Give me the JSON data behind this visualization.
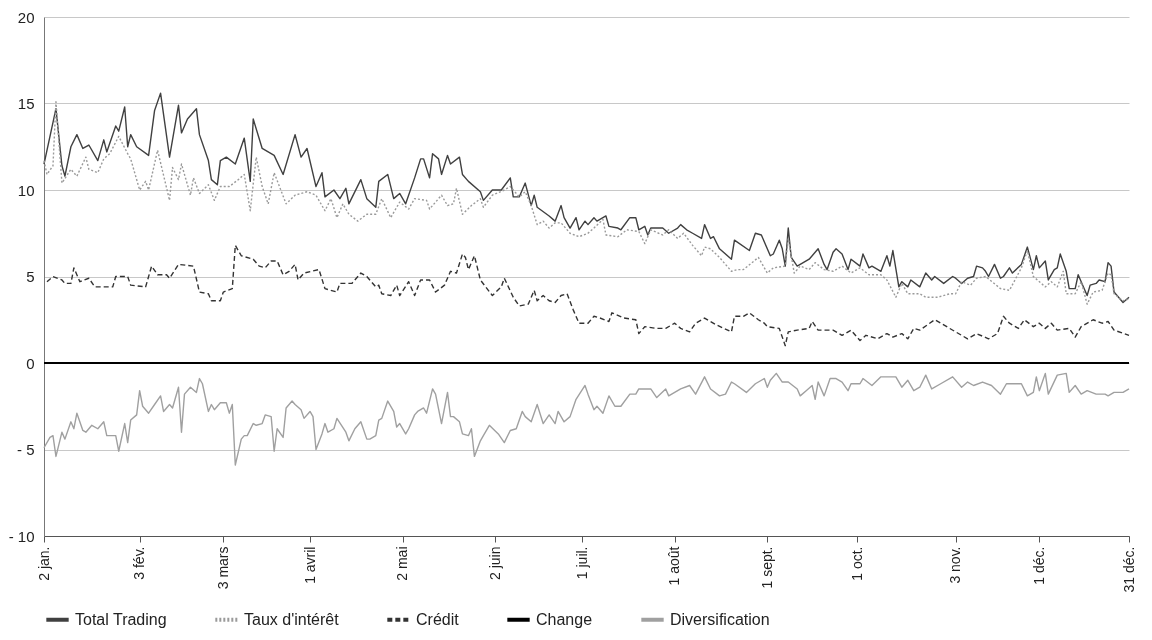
{
  "chart_data": {
    "type": "line",
    "legend": "bottom",
    "grid": "y",
    "xlim": [
      "--01-02",
      "--12-31"
    ],
    "xticks": [
      {
        "value": "--01-02",
        "label": "2 jan."
      },
      {
        "value": "--02-03",
        "label": "3 fév."
      },
      {
        "value": "--03-03",
        "label": "3 mars"
      },
      {
        "value": "--04-01",
        "label": "1 avril"
      },
      {
        "value": "--05-02",
        "label": "2 mai"
      },
      {
        "value": "--06-02",
        "label": "2 juin"
      },
      {
        "value": "--07-01",
        "label": "1 juil."
      },
      {
        "value": "--08-01",
        "label": "1 août"
      },
      {
        "value": "--09-01",
        "label": "1 sept."
      },
      {
        "value": "--10-01",
        "label": "1 oct."
      },
      {
        "value": "--11-03",
        "label": "3 nov."
      },
      {
        "value": "--12-01",
        "label": "1 déc."
      },
      {
        "value": "--12-31",
        "label": "31 déc."
      }
    ],
    "ylim": [
      -10,
      20
    ],
    "yticks": [
      {
        "value": -10,
        "label": "- 10"
      },
      {
        "value": -5,
        "label": "- 5"
      },
      0,
      5,
      10,
      15,
      20
    ],
    "series": [
      {
        "name": "Total Trading",
        "color": "#404040",
        "line_style": "solid",
        "x": [
          "--01-02",
          "--01-06",
          "--01-08",
          "--01-09",
          "--01-11",
          "--01-13",
          "--01-15",
          "--01-17",
          "--01-20",
          "--01-22",
          "--01-23",
          "--01-26",
          "--01-27",
          "--01-29",
          "--01-30",
          "--01-31",
          "--02-02",
          "--02-06",
          "--02-08",
          "--02-10",
          "--02-13",
          "--02-16",
          "--02-17",
          "--02-19",
          "--02-22",
          "--02-23",
          "--02-26",
          "--02-27",
          "--03-01",
          "--03-02",
          "--03-04",
          "--03-07",
          "--03-10",
          "--03-12",
          "--03-13",
          "--03-16",
          "--03-20",
          "--03-23",
          "--03-27",
          "--03-29",
          "--03-31",
          "--04-03",
          "--04-05",
          "--04-06",
          "--04-09",
          "--04-11",
          "--04-13",
          "--04-14",
          "--04-18",
          "--04-20",
          "--04-23",
          "--04-24",
          "--04-27",
          "--04-29",
          "--05-01",
          "--05-03",
          "--05-06",
          "--05-08",
          "--05-09",
          "--05-11",
          "--05-12",
          "--05-14",
          "--05-15",
          "--05-17",
          "--05-18",
          "--05-21",
          "--05-22",
          "--05-24",
          "--05-28",
          "--05-29",
          "--06-01",
          "--06-04",
          "--06-07",
          "--06-08",
          "--06-10",
          "--06-12",
          "--06-14",
          "--06-15",
          "--06-16",
          "--06-20",
          "--06-22",
          "--06-24",
          "--06-25",
          "--06-27",
          "--06-29",
          "--06-30",
          "--07-02",
          "--07-03",
          "--07-05",
          "--07-06",
          "--07-09",
          "--07-10",
          "--07-13",
          "--07-14",
          "--07-17",
          "--07-19",
          "--07-20",
          "--07-22",
          "--07-23",
          "--07-24",
          "--07-28",
          "--07-30",
          "--08-02",
          "--08-03",
          "--08-05",
          "--08-07",
          "--08-10",
          "--08-11",
          "--08-13",
          "--08-14",
          "--08-16",
          "--08-20",
          "--08-21",
          "--08-26",
          "--08-28",
          "--08-30",
          "--09-02",
          "--09-03",
          "--09-05",
          "--09-06",
          "--09-07",
          "--09-08",
          "--09-09",
          "--09-11",
          "--09-14",
          "--09-15",
          "--09-18",
          "--09-20",
          "--09-21",
          "--09-23",
          "--09-24",
          "--09-26",
          "--09-28",
          "--09-29",
          "--10-02",
          "--10-03",
          "--10-05",
          "--10-06",
          "--10-09",
          "--10-11",
          "--10-12",
          "--10-13",
          "--10-15",
          "--10-16",
          "--10-18",
          "--10-19",
          "--10-22",
          "--10-24",
          "--10-26",
          "--10-27",
          "--10-30",
          "--11-02",
          "--11-03",
          "--11-05",
          "--11-07",
          "--11-09",
          "--11-10",
          "--11-12",
          "--11-13",
          "--11-14",
          "--11-16",
          "--11-18",
          "--11-19",
          "--11-21",
          "--11-22",
          "--11-25",
          "--11-27",
          "--11-29",
          "--11-30",
          "--12-01",
          "--12-03",
          "--12-04",
          "--12-06",
          "--12-07",
          "--12-08",
          "--12-10",
          "--12-11",
          "--12-13",
          "--12-14",
          "--12-15",
          "--12-17",
          "--12-18",
          "--12-20",
          "--12-21",
          "--12-23",
          "--12-24",
          "--12-25",
          "--12-26",
          "--12-29",
          "--12-31"
        ],
        "values": [
          11.5,
          14.7,
          11.4,
          10.8,
          12.5,
          13.2,
          12.4,
          12.6,
          11.7,
          12.9,
          12.2,
          13.7,
          13.4,
          14.8,
          12.5,
          13.2,
          12.5,
          12.0,
          14.6,
          15.6,
          11.9,
          14.9,
          13.3,
          14.1,
          14.7,
          13.2,
          11.7,
          10.6,
          10.3,
          11.7,
          11.9,
          11.5,
          13.0,
          10.5,
          14.1,
          12.4,
          12.0,
          10.9,
          13.2,
          11.9,
          12.4,
          10.2,
          11.0,
          9.6,
          10.0,
          9.5,
          10.1,
          9.2,
          10.6,
          9.5,
          9.0,
          10.5,
          10.9,
          9.5,
          9.8,
          9.2,
          10.7,
          11.8,
          11.8,
          10.7,
          12.1,
          11.8,
          10.9,
          12.0,
          11.5,
          11.9,
          10.9,
          10.5,
          9.9,
          9.4,
          10.0,
          10.0,
          10.7,
          9.6,
          9.6,
          10.4,
          9.1,
          9.7,
          9.0,
          8.5,
          8.2,
          9.1,
          8.4,
          7.8,
          8.4,
          7.7,
          8.2,
          8.0,
          8.4,
          8.2,
          8.5,
          7.9,
          7.8,
          7.7,
          8.4,
          8.4,
          7.7,
          7.9,
          7.4,
          7.8,
          7.8,
          7.5,
          7.8,
          8.0,
          7.7,
          7.5,
          7.2,
          8.0,
          7.2,
          7.3,
          6.6,
          6.0,
          7.1,
          6.5,
          7.5,
          7.4,
          6.2,
          6.3,
          7.1,
          6.6,
          5.6,
          7.8,
          6.1,
          5.6,
          5.9,
          6.0,
          6.6,
          5.7,
          5.4,
          6.4,
          6.6,
          6.3,
          5.4,
          6.0,
          5.6,
          6.3,
          5.5,
          5.6,
          5.3,
          6.2,
          5.6,
          6.5,
          4.4,
          4.7,
          4.4,
          4.8,
          4.4,
          5.2,
          4.8,
          5.0,
          4.6,
          5.0,
          4.9,
          4.6,
          4.9,
          5.0,
          5.6,
          5.5,
          5.3,
          5.0,
          5.7,
          4.9,
          5.0,
          5.5,
          5.2,
          5.7,
          6.7,
          5.4,
          6.2,
          5.5,
          5.9,
          4.8,
          5.4,
          5.5,
          6.3,
          5.3,
          4.3,
          4.3,
          5.1,
          4.7,
          3.9,
          4.5,
          4.6,
          4.8,
          4.7,
          5.8,
          5.6,
          4.1,
          3.5,
          3.8
        ]
      },
      {
        "name": "Taux d'intérêt",
        "color": "#9a9a9a",
        "line_style": "dotted",
        "x": [
          "--01-02",
          "--01-03",
          "--01-05",
          "--01-06",
          "--01-08",
          "--01-11",
          "--01-13",
          "--01-16",
          "--01-17",
          "--01-20",
          "--01-22",
          "--01-24",
          "--01-27",
          "--01-30",
          "--01-31",
          "--02-03",
          "--02-05",
          "--02-06",
          "--02-09",
          "--02-13",
          "--02-14",
          "--02-16",
          "--02-17",
          "--02-20",
          "--02-21",
          "--02-23",
          "--02-26",
          "--02-28",
          "--03-02",
          "--03-05",
          "--03-08",
          "--03-10",
          "--03-12",
          "--03-14",
          "--03-16",
          "--03-18",
          "--03-20",
          "--03-24",
          "--03-27",
          "--03-31",
          "--04-03",
          "--04-06",
          "--04-08",
          "--04-10",
          "--04-12",
          "--04-14",
          "--04-17",
          "--04-20",
          "--04-23",
          "--04-25",
          "--04-28",
          "--05-01",
          "--05-04",
          "--05-06",
          "--05-10",
          "--05-11",
          "--05-15",
          "--05-17",
          "--05-19",
          "--05-20",
          "--05-22",
          "--05-25",
          "--05-28",
          "--05-29",
          "--06-01",
          "--06-05",
          "--06-07",
          "--06-10",
          "--06-12",
          "--06-14",
          "--06-16",
          "--06-18",
          "--06-20",
          "--06-22",
          "--06-24",
          "--06-27",
          "--06-30",
          "--07-03",
          "--07-05",
          "--07-08",
          "--07-09",
          "--07-13",
          "--07-16",
          "--07-20",
          "--07-22",
          "--07-24",
          "--07-28",
          "--07-30",
          "--08-02",
          "--08-04",
          "--08-07",
          "--08-10",
          "--08-11",
          "--08-13",
          "--08-16",
          "--08-20",
          "--08-22",
          "--08-24",
          "--08-29",
          "--09-01",
          "--09-03",
          "--09-07",
          "--09-08",
          "--09-10",
          "--09-12",
          "--09-15",
          "--09-17",
          "--09-20",
          "--09-23",
          "--09-26",
          "--09-29",
          "--10-02",
          "--10-05",
          "--10-09",
          "--10-11",
          "--10-14",
          "--10-16",
          "--10-18",
          "--10-22",
          "--10-24",
          "--10-28",
          "--11-01",
          "--11-03",
          "--11-05",
          "--11-08",
          "--11-10",
          "--11-13",
          "--11-18",
          "--11-21",
          "--11-25",
          "--11-27",
          "--11-29",
          "--12-03",
          "--12-05",
          "--12-07",
          "--12-09",
          "--12-10",
          "--12-13",
          "--12-15",
          "--12-17",
          "--12-19",
          "--12-22",
          "--12-24",
          "--12-25",
          "--12-26",
          "--12-29",
          "--12-31"
        ],
        "values": [
          11.7,
          10.9,
          11.4,
          15.1,
          10.4,
          11.2,
          10.8,
          11.9,
          11.2,
          11.0,
          11.8,
          12.1,
          13.1,
          12.1,
          11.8,
          10.0,
          10.5,
          10.0,
          12.3,
          9.4,
          11.3,
          10.6,
          11.5,
          9.7,
          10.7,
          9.8,
          10.3,
          9.4,
          10.2,
          10.2,
          10.6,
          10.9,
          8.8,
          11.9,
          10.2,
          9.2,
          11.0,
          9.2,
          9.7,
          9.9,
          9.7,
          8.8,
          9.5,
          8.4,
          9.2,
          8.6,
          8.2,
          8.6,
          8.6,
          9.5,
          8.4,
          9.3,
          8.9,
          9.5,
          9.4,
          8.9,
          9.7,
          9.1,
          9.2,
          10.1,
          8.6,
          9.1,
          9.5,
          9.0,
          9.7,
          10.0,
          10.2,
          9.6,
          9.9,
          9.1,
          8.0,
          8.2,
          7.8,
          8.1,
          8.1,
          7.5,
          7.3,
          7.5,
          7.8,
          8.3,
          7.4,
          7.3,
          7.7,
          7.6,
          6.9,
          7.7,
          7.4,
          7.7,
          7.2,
          7.5,
          6.8,
          6.2,
          6.7,
          6.6,
          6.1,
          5.3,
          5.4,
          5.4,
          6.1,
          5.2,
          5.5,
          5.6,
          7.2,
          5.2,
          5.6,
          5.4,
          5.8,
          5.4,
          5.3,
          5.6,
          5.2,
          5.5,
          5.1,
          5.1,
          4.8,
          3.8,
          4.6,
          4.0,
          4.0,
          3.8,
          3.8,
          4.0,
          4.0,
          4.7,
          4.5,
          4.9,
          5.0,
          4.3,
          4.2,
          5.5,
          6.5,
          5.0,
          4.4,
          4.7,
          4.4,
          5.3,
          4.0,
          4.0,
          4.7,
          3.4,
          4.1,
          4.2,
          5.2,
          5.1,
          4.0,
          3.6,
          3.7
        ]
      },
      {
        "name": "Crédit",
        "color": "#333333",
        "line_style": "dashed",
        "x": [
          "--01-03",
          "--01-05",
          "--01-08",
          "--01-09",
          "--01-11",
          "--01-12",
          "--01-14",
          "--01-17",
          "--01-19",
          "--01-25",
          "--01-26",
          "--01-30",
          "--01-31",
          "--02-05",
          "--02-07",
          "--02-09",
          "--02-12",
          "--02-13",
          "--02-16",
          "--02-21",
          "--02-23",
          "--02-26",
          "--02-27",
          "--03-02",
          "--03-03",
          "--03-06",
          "--03-07",
          "--03-09",
          "--03-13",
          "--03-15",
          "--03-17",
          "--03-19",
          "--03-21",
          "--03-23",
          "--03-25",
          "--03-27",
          "--03-28",
          "--03-30",
          "--04-04",
          "--04-06",
          "--04-10",
          "--04-11",
          "--04-15",
          "--04-18",
          "--04-20",
          "--04-23",
          "--04-24",
          "--04-25",
          "--04-28",
          "--04-30",
          "--05-01",
          "--05-04",
          "--05-06",
          "--05-08",
          "--05-11",
          "--05-13",
          "--05-16",
          "--05-18",
          "--05-20",
          "--05-22",
          "--05-23",
          "--05-24",
          "--05-26",
          "--05-28",
          "--06-01",
          "--06-04",
          "--06-05",
          "--06-08",
          "--06-10",
          "--06-13",
          "--06-15",
          "--06-16",
          "--06-18",
          "--06-20",
          "--06-22",
          "--06-24",
          "--06-26",
          "--06-28",
          "--06-30",
          "--07-03",
          "--07-05",
          "--07-07",
          "--07-10",
          "--07-11",
          "--07-15",
          "--07-19",
          "--07-20",
          "--07-22",
          "--07-26",
          "--07-29",
          "--08-01",
          "--08-03",
          "--08-06",
          "--08-08",
          "--08-11",
          "--08-15",
          "--08-20",
          "--08-21",
          "--08-24",
          "--08-26",
          "--08-29",
          "--08-31",
          "--09-01",
          "--09-05",
          "--09-07",
          "--09-08",
          "--09-11",
          "--09-15",
          "--09-16",
          "--09-18",
          "--09-23",
          "--09-26",
          "--09-29",
          "--10-02",
          "--10-04",
          "--10-08",
          "--10-11",
          "--10-13",
          "--10-16",
          "--10-18",
          "--10-20",
          "--10-22",
          "--10-27",
          "--11-01",
          "--11-05",
          "--11-07",
          "--11-10",
          "--11-14",
          "--11-17",
          "--11-19",
          "--11-21",
          "--11-24",
          "--11-26",
          "--11-29",
          "--12-01",
          "--12-03",
          "--12-05",
          "--12-07",
          "--12-11",
          "--12-13",
          "--12-15",
          "--12-19",
          "--12-22",
          "--12-24",
          "--12-26",
          "--12-31"
        ],
        "values": [
          4.7,
          5.0,
          4.8,
          4.6,
          4.6,
          5.5,
          4.7,
          4.9,
          4.4,
          4.4,
          5.0,
          5.0,
          4.5,
          4.4,
          5.6,
          5.1,
          5.1,
          4.9,
          5.7,
          5.6,
          4.1,
          4.0,
          3.6,
          3.6,
          4.1,
          4.3,
          6.8,
          6.2,
          6.0,
          5.6,
          5.5,
          5.9,
          5.9,
          5.1,
          5.3,
          5.7,
          4.8,
          5.2,
          5.4,
          4.3,
          4.1,
          4.6,
          4.6,
          5.2,
          5.0,
          4.4,
          4.5,
          4.0,
          3.9,
          4.5,
          3.9,
          4.7,
          3.9,
          4.8,
          4.8,
          4.1,
          4.5,
          5.3,
          5.2,
          6.3,
          6.1,
          5.4,
          6.2,
          4.8,
          3.9,
          4.4,
          4.9,
          3.8,
          3.3,
          3.4,
          4.2,
          3.6,
          3.9,
          3.6,
          3.5,
          3.9,
          4.0,
          3.1,
          2.3,
          2.3,
          2.7,
          2.6,
          2.4,
          2.9,
          2.6,
          2.5,
          1.7,
          2.1,
          2.0,
          2.0,
          2.3,
          2.0,
          1.8,
          2.3,
          2.6,
          2.2,
          1.8,
          2.7,
          2.7,
          2.9,
          2.5,
          2.3,
          2.1,
          2.0,
          1.0,
          1.8,
          1.9,
          2.0,
          2.4,
          1.9,
          1.9,
          1.6,
          1.9,
          1.3,
          1.6,
          1.4,
          1.7,
          1.5,
          1.7,
          1.4,
          2.0,
          1.9,
          2.5,
          2.0,
          1.6,
          1.4,
          1.7,
          1.4,
          1.7,
          2.7,
          2.3,
          2.0,
          2.5,
          2.1,
          2.3,
          2.0,
          2.3,
          1.9,
          2.0,
          1.5,
          2.1,
          2.5,
          2.3,
          2.4,
          1.9,
          1.6
        ]
      },
      {
        "name": "Change",
        "color": "#000000",
        "line_style": "solid",
        "x": [
          "--01-02",
          "--04-01",
          "--07-01",
          "--10-01",
          "--12-31"
        ],
        "values": [
          0,
          0,
          0,
          0,
          0
        ]
      },
      {
        "name": "Diversification",
        "color": "#a0a0a0",
        "line_style": "solid",
        "x": [
          "--01-02",
          "--01-04",
          "--01-05",
          "--01-06",
          "--01-08",
          "--01-09",
          "--01-11",
          "--01-12",
          "--01-13",
          "--01-15",
          "--01-16",
          "--01-18",
          "--01-20",
          "--01-22",
          "--01-23",
          "--01-26",
          "--01-27",
          "--01-29",
          "--01-30",
          "--01-31",
          "--02-02",
          "--02-03",
          "--02-04",
          "--02-06",
          "--02-08",
          "--02-10",
          "--02-11",
          "--02-13",
          "--02-14",
          "--02-16",
          "--02-17",
          "--02-18",
          "--02-20",
          "--02-22",
          "--02-23",
          "--02-24",
          "--02-26",
          "--02-27",
          "--02-28",
          "--03-02",
          "--03-04",
          "--03-05",
          "--03-06",
          "--03-07",
          "--03-09",
          "--03-10",
          "--03-11",
          "--03-13",
          "--03-14",
          "--03-16",
          "--03-17",
          "--03-19",
          "--03-20",
          "--03-21",
          "--03-23",
          "--03-24",
          "--03-26",
          "--03-27",
          "--03-29",
          "--03-30",
          "--04-01",
          "--04-02",
          "--04-03",
          "--04-05",
          "--04-06",
          "--04-07",
          "--04-09",
          "--04-10",
          "--04-13",
          "--04-14",
          "--04-16",
          "--04-18",
          "--04-20",
          "--04-21",
          "--04-23",
          "--04-24",
          "--04-25",
          "--04-27",
          "--04-29",
          "--04-30",
          "--05-01",
          "--05-03",
          "--05-04",
          "--05-06",
          "--05-07",
          "--05-09",
          "--05-10",
          "--05-12",
          "--05-13",
          "--05-15",
          "--05-17",
          "--05-18",
          "--05-19",
          "--05-21",
          "--05-22",
          "--05-24",
          "--05-25",
          "--05-26",
          "--05-28",
          "--05-29",
          "--05-31",
          "--06-03",
          "--06-05",
          "--06-07",
          "--06-09",
          "--06-11",
          "--06-12",
          "--06-14",
          "--06-16",
          "--06-18",
          "--06-20",
          "--06-22",
          "--06-23",
          "--06-25",
          "--06-27",
          "--06-29",
          "--07-02",
          "--07-03",
          "--07-05",
          "--07-06",
          "--07-08",
          "--07-10",
          "--07-12",
          "--07-14",
          "--07-17",
          "--07-19",
          "--07-20",
          "--07-24",
          "--07-26",
          "--07-29",
          "--07-30",
          "--08-03",
          "--08-06",
          "--08-08",
          "--08-11",
          "--08-13",
          "--08-16",
          "--08-18",
          "--08-20",
          "--08-21",
          "--08-25",
          "--08-28",
          "--08-31",
          "--09-01",
          "--09-02",
          "--09-04",
          "--09-06",
          "--09-08",
          "--09-11",
          "--09-12",
          "--09-14",
          "--09-16",
          "--09-17",
          "--09-18",
          "--09-20",
          "--09-22",
          "--09-24",
          "--09-26",
          "--09-28",
          "--09-29",
          "--10-02",
          "--10-03",
          "--10-06",
          "--10-09",
          "--10-14",
          "--10-16",
          "--10-18",
          "--10-20",
          "--10-22",
          "--10-24",
          "--10-26",
          "--10-29",
          "--11-02",
          "--11-05",
          "--11-07",
          "--11-09",
          "--11-12",
          "--11-15",
          "--11-18",
          "--11-20",
          "--11-22",
          "--11-25",
          "--11-27",
          "--11-29",
          "--11-30",
          "--12-01",
          "--12-03",
          "--12-04",
          "--12-07",
          "--12-10",
          "--12-11",
          "--12-13",
          "--12-15",
          "--12-17",
          "--12-20",
          "--12-23",
          "--12-24",
          "--12-26",
          "--12-29",
          "--12-31"
        ],
        "values": [
          -4.9,
          -4.3,
          -4.2,
          -5.4,
          -4.0,
          -4.4,
          -3.4,
          -3.8,
          -2.9,
          -3.9,
          -4.0,
          -3.6,
          -3.8,
          -3.4,
          -4.2,
          -4.2,
          -5.1,
          -3.5,
          -4.6,
          -3.3,
          -3.0,
          -1.6,
          -2.5,
          -2.9,
          -2.4,
          -1.9,
          -2.8,
          -2.4,
          -2.6,
          -1.4,
          -4.0,
          -1.8,
          -1.4,
          -1.7,
          -0.9,
          -1.2,
          -2.8,
          -2.4,
          -2.7,
          -2.3,
          -2.3,
          -2.9,
          -2.4,
          -5.9,
          -4.4,
          -4.2,
          -4.2,
          -3.5,
          -3.6,
          -3.5,
          -3.0,
          -3.1,
          -5.1,
          -3.8,
          -4.3,
          -2.6,
          -2.2,
          -2.4,
          -2.7,
          -3.2,
          -2.8,
          -3.1,
          -5.0,
          -4.1,
          -3.5,
          -4.0,
          -3.8,
          -3.2,
          -4.0,
          -4.5,
          -3.8,
          -3.4,
          -4.4,
          -4.4,
          -4.2,
          -3.3,
          -3.2,
          -2.2,
          -2.8,
          -3.7,
          -3.5,
          -4.1,
          -3.8,
          -3.0,
          -2.8,
          -2.6,
          -2.9,
          -1.5,
          -1.8,
          -3.5,
          -1.7,
          -3.1,
          -3.1,
          -3.4,
          -4.1,
          -4.2,
          -3.8,
          -5.4,
          -4.5,
          -4.2,
          -3.6,
          -4.1,
          -4.6,
          -3.9,
          -3.8,
          -2.8,
          -3.1,
          -3.4,
          -2.4,
          -3.5,
          -3.0,
          -3.5,
          -2.8,
          -3.4,
          -3.1,
          -2.1,
          -1.3,
          -1.8,
          -2.7,
          -2.5,
          -2.9,
          -1.9,
          -2.5,
          -2.5,
          -1.8,
          -1.8,
          -1.5,
          -1.5,
          -2.0,
          -1.5,
          -1.9,
          -1.5,
          -1.3,
          -1.8,
          -0.8,
          -1.5,
          -1.9,
          -1.8,
          -1.1,
          -1.2,
          -1.7,
          -1.2,
          -0.9,
          -1.4,
          -1.0,
          -0.6,
          -1.1,
          -1.1,
          -1.5,
          -1.9,
          -1.6,
          -1.3,
          -2.1,
          -1.1,
          -1.9,
          -0.9,
          -0.9,
          -1.1,
          -1.6,
          -1.2,
          -1.2,
          -0.9,
          -1.3,
          -0.8,
          -0.8,
          -1.4,
          -1.0,
          -1.6,
          -1.4,
          -0.7,
          -1.5,
          -1.2,
          -0.8,
          -1.4,
          -1.1,
          -1.3,
          -1.1,
          -1.3,
          -1.8,
          -1.2,
          -1.2,
          -1.2,
          -1.9,
          -1.7,
          -0.8,
          -1.6,
          -0.6,
          -1.8,
          -0.7,
          -0.6,
          -1.7,
          -1.3,
          -1.8,
          -1.6,
          -1.8,
          -1.8,
          -1.9,
          -1.7,
          -1.7,
          -1.5
        ]
      }
    ]
  }
}
